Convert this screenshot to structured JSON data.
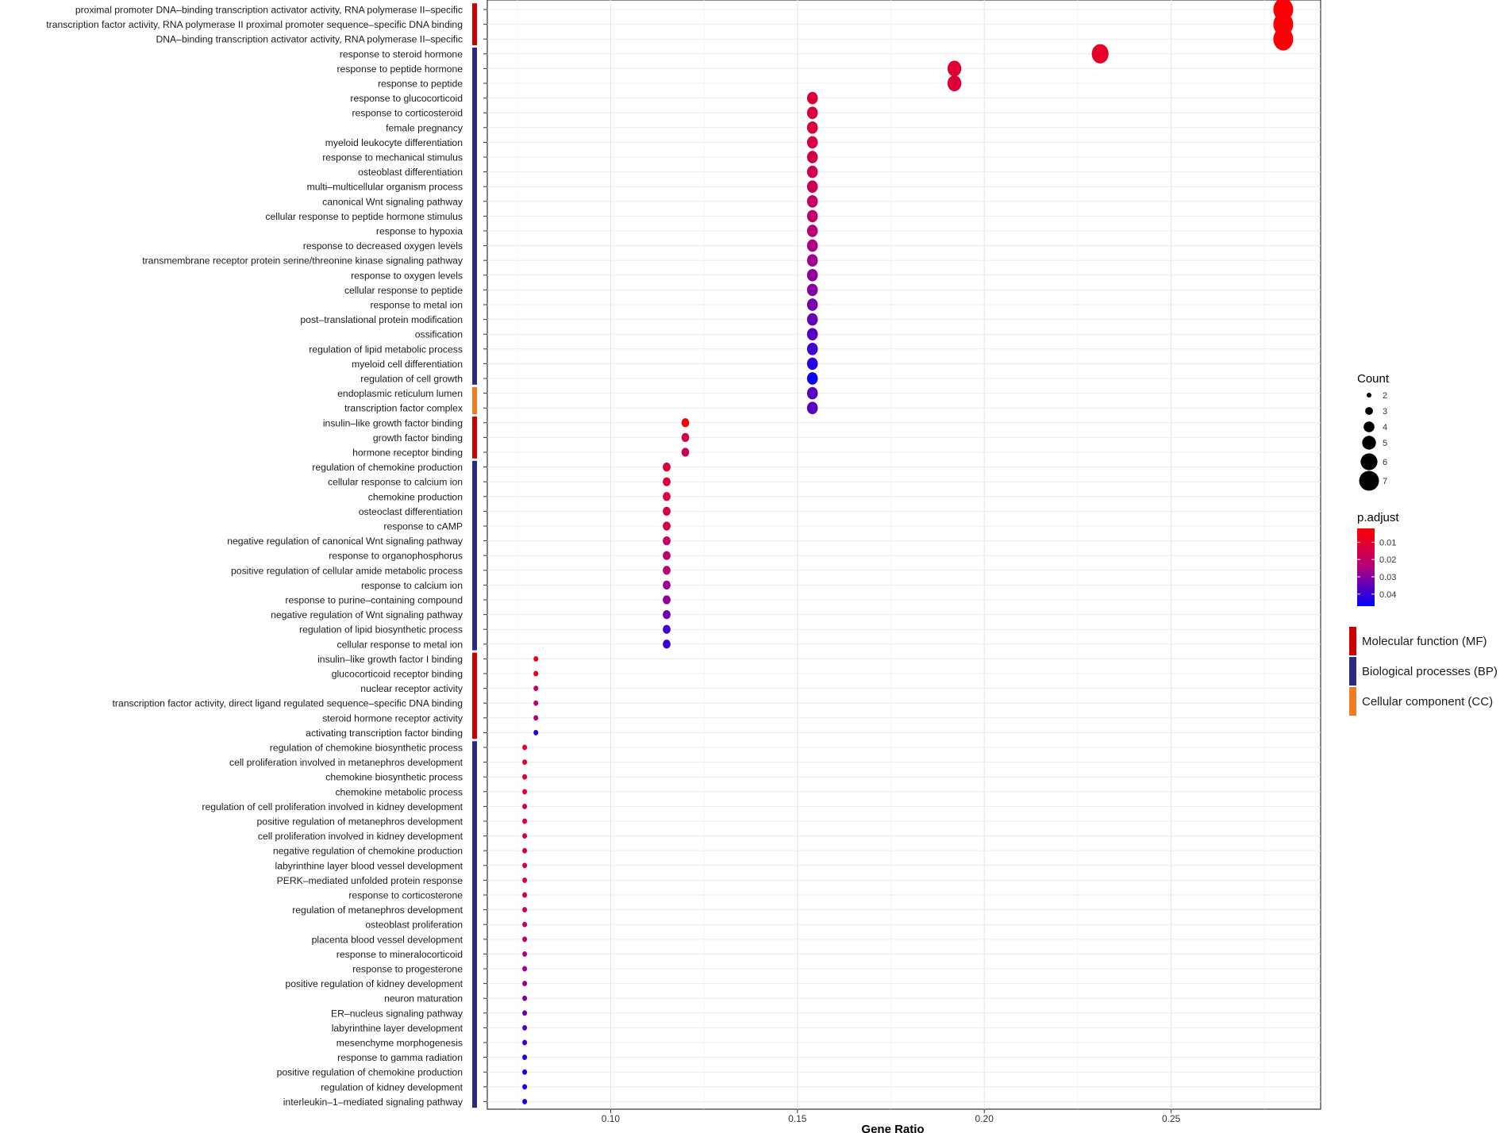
{
  "chart_data": {
    "type": "scatter",
    "xlabel": "Gene Ratio",
    "ylabel": "",
    "xlim": [
      0.067,
      0.29
    ],
    "x_ticks": [
      "0.10",
      "0.15",
      "0.20",
      "0.25"
    ],
    "x_tick_values": [
      0.1,
      0.15,
      0.2,
      0.25
    ],
    "grid": true,
    "legend_position": "right",
    "size_legend": {
      "title": "Count",
      "values": [
        2,
        3,
        4,
        5,
        6,
        7
      ]
    },
    "color_legend": {
      "title": "p.adjust",
      "ticks": [
        "0.01",
        "0.02",
        "0.03",
        "0.04"
      ],
      "tick_values": [
        0.01,
        0.02,
        0.03,
        0.04
      ],
      "range": [
        0.002,
        0.047
      ],
      "low_color": "#ff0000",
      "high_color": "#0000ff"
    },
    "category_legend": [
      {
        "label": "Molecular function (MF)",
        "code": "MF",
        "color": "#cc0000"
      },
      {
        "label": "Biological processes (BP)",
        "code": "BP",
        "color": "#2b2a7e"
      },
      {
        "label": "Cellular component (CC)",
        "code": "CC",
        "color": "#f07d24"
      }
    ],
    "terms": [
      {
        "label": "proximal promoter DNA–binding transcription activator activity, RNA polymerase II–specific",
        "cat": "MF",
        "x": 0.28,
        "count": 7,
        "p": 0.003
      },
      {
        "label": "transcription factor activity, RNA polymerase II proximal promoter sequence–specific DNA binding",
        "cat": "MF",
        "x": 0.28,
        "count": 7,
        "p": 0.003
      },
      {
        "label": "DNA–binding transcription activator activity, RNA polymerase II–specific",
        "cat": "MF",
        "x": 0.28,
        "count": 7,
        "p": 0.003
      },
      {
        "label": "response to steroid hormone",
        "cat": "BP",
        "x": 0.231,
        "count": 6,
        "p": 0.009
      },
      {
        "label": "response to peptide hormone",
        "cat": "BP",
        "x": 0.192,
        "count": 5,
        "p": 0.011
      },
      {
        "label": "response to peptide",
        "cat": "BP",
        "x": 0.192,
        "count": 5,
        "p": 0.012
      },
      {
        "label": "response to glucocorticoid",
        "cat": "BP",
        "x": 0.154,
        "count": 4,
        "p": 0.012
      },
      {
        "label": "response to corticosteroid",
        "cat": "BP",
        "x": 0.154,
        "count": 4,
        "p": 0.013
      },
      {
        "label": "female pregnancy",
        "cat": "BP",
        "x": 0.154,
        "count": 4,
        "p": 0.013
      },
      {
        "label": "myeloid leukocyte differentiation",
        "cat": "BP",
        "x": 0.154,
        "count": 4,
        "p": 0.014
      },
      {
        "label": "response to mechanical stimulus",
        "cat": "BP",
        "x": 0.154,
        "count": 4,
        "p": 0.015
      },
      {
        "label": "osteoblast differentiation",
        "cat": "BP",
        "x": 0.154,
        "count": 4,
        "p": 0.016
      },
      {
        "label": "multi–multicellular organism process",
        "cat": "BP",
        "x": 0.154,
        "count": 4,
        "p": 0.017
      },
      {
        "label": "canonical Wnt signaling pathway",
        "cat": "BP",
        "x": 0.154,
        "count": 4,
        "p": 0.019
      },
      {
        "label": "cellular response to peptide hormone stimulus",
        "cat": "BP",
        "x": 0.154,
        "count": 4,
        "p": 0.021
      },
      {
        "label": "response to hypoxia",
        "cat": "BP",
        "x": 0.154,
        "count": 4,
        "p": 0.023
      },
      {
        "label": "response to decreased oxygen levels",
        "cat": "BP",
        "x": 0.154,
        "count": 4,
        "p": 0.025
      },
      {
        "label": "transmembrane receptor protein serine/threonine kinase signaling pathway",
        "cat": "BP",
        "x": 0.154,
        "count": 4,
        "p": 0.027
      },
      {
        "label": "response to oxygen levels",
        "cat": "BP",
        "x": 0.154,
        "count": 4,
        "p": 0.029
      },
      {
        "label": "cellular response to peptide",
        "cat": "BP",
        "x": 0.154,
        "count": 4,
        "p": 0.03
      },
      {
        "label": "response to metal ion",
        "cat": "BP",
        "x": 0.154,
        "count": 4,
        "p": 0.032
      },
      {
        "label": "post–translational protein modification",
        "cat": "BP",
        "x": 0.154,
        "count": 4,
        "p": 0.034
      },
      {
        "label": "ossification",
        "cat": "BP",
        "x": 0.154,
        "count": 4,
        "p": 0.036
      },
      {
        "label": "regulation of lipid metabolic process",
        "cat": "BP",
        "x": 0.154,
        "count": 4,
        "p": 0.039
      },
      {
        "label": "myeloid cell differentiation",
        "cat": "BP",
        "x": 0.154,
        "count": 4,
        "p": 0.042
      },
      {
        "label": "regulation of cell growth",
        "cat": "BP",
        "x": 0.154,
        "count": 4,
        "p": 0.046
      },
      {
        "label": "endoplasmic reticulum lumen",
        "cat": "CC",
        "x": 0.154,
        "count": 4,
        "p": 0.036
      },
      {
        "label": "transcription factor complex",
        "cat": "CC",
        "x": 0.154,
        "count": 4,
        "p": 0.036
      },
      {
        "label": "insulin–like growth factor binding",
        "cat": "MF",
        "x": 0.12,
        "count": 3,
        "p": 0.004
      },
      {
        "label": "growth factor binding",
        "cat": "MF",
        "x": 0.12,
        "count": 3,
        "p": 0.016
      },
      {
        "label": "hormone receptor binding",
        "cat": "MF",
        "x": 0.12,
        "count": 3,
        "p": 0.018
      },
      {
        "label": "regulation of chemokine production",
        "cat": "BP",
        "x": 0.115,
        "count": 3,
        "p": 0.012
      },
      {
        "label": "cellular response to calcium ion",
        "cat": "BP",
        "x": 0.115,
        "count": 3,
        "p": 0.013
      },
      {
        "label": "chemokine production",
        "cat": "BP",
        "x": 0.115,
        "count": 3,
        "p": 0.013
      },
      {
        "label": "osteoclast differentiation",
        "cat": "BP",
        "x": 0.115,
        "count": 3,
        "p": 0.014
      },
      {
        "label": "response to cAMP",
        "cat": "BP",
        "x": 0.115,
        "count": 3,
        "p": 0.015
      },
      {
        "label": "negative regulation of canonical Wnt signaling pathway",
        "cat": "BP",
        "x": 0.115,
        "count": 3,
        "p": 0.02
      },
      {
        "label": "response to organophosphorus",
        "cat": "BP",
        "x": 0.115,
        "count": 3,
        "p": 0.021
      },
      {
        "label": "positive regulation of cellular amide metabolic process",
        "cat": "BP",
        "x": 0.115,
        "count": 3,
        "p": 0.022
      },
      {
        "label": "response to calcium ion",
        "cat": "BP",
        "x": 0.115,
        "count": 3,
        "p": 0.027
      },
      {
        "label": "response to purine–containing compound",
        "cat": "BP",
        "x": 0.115,
        "count": 3,
        "p": 0.029
      },
      {
        "label": "negative regulation of Wnt signaling pathway",
        "cat": "BP",
        "x": 0.115,
        "count": 3,
        "p": 0.033
      },
      {
        "label": "regulation of lipid biosynthetic process",
        "cat": "BP",
        "x": 0.115,
        "count": 3,
        "p": 0.038
      },
      {
        "label": "cellular response to metal ion",
        "cat": "BP",
        "x": 0.115,
        "count": 3,
        "p": 0.04
      },
      {
        "label": "insulin–like growth factor I binding",
        "cat": "MF",
        "x": 0.08,
        "count": 2,
        "p": 0.006
      },
      {
        "label": "glucocorticoid receptor binding",
        "cat": "MF",
        "x": 0.08,
        "count": 2,
        "p": 0.007
      },
      {
        "label": "nuclear receptor activity",
        "cat": "MF",
        "x": 0.08,
        "count": 2,
        "p": 0.02
      },
      {
        "label": "transcription factor activity, direct ligand regulated sequence–specific DNA binding",
        "cat": "MF",
        "x": 0.08,
        "count": 2,
        "p": 0.021
      },
      {
        "label": "steroid hormone receptor activity",
        "cat": "MF",
        "x": 0.08,
        "count": 2,
        "p": 0.023
      },
      {
        "label": "activating transcription factor binding",
        "cat": "MF",
        "x": 0.08,
        "count": 2,
        "p": 0.043
      },
      {
        "label": "regulation of chemokine biosynthetic process",
        "cat": "BP",
        "x": 0.077,
        "count": 2,
        "p": 0.01
      },
      {
        "label": "cell proliferation involved in metanephros development",
        "cat": "BP",
        "x": 0.077,
        "count": 2,
        "p": 0.01
      },
      {
        "label": "chemokine biosynthetic process",
        "cat": "BP",
        "x": 0.077,
        "count": 2,
        "p": 0.011
      },
      {
        "label": "chemokine metabolic process",
        "cat": "BP",
        "x": 0.077,
        "count": 2,
        "p": 0.012
      },
      {
        "label": "regulation of cell proliferation involved in kidney development",
        "cat": "BP",
        "x": 0.077,
        "count": 2,
        "p": 0.013
      },
      {
        "label": "positive regulation of metanephros development",
        "cat": "BP",
        "x": 0.077,
        "count": 2,
        "p": 0.013
      },
      {
        "label": "cell proliferation involved in kidney development",
        "cat": "BP",
        "x": 0.077,
        "count": 2,
        "p": 0.014
      },
      {
        "label": "negative regulation of chemokine production",
        "cat": "BP",
        "x": 0.077,
        "count": 2,
        "p": 0.014
      },
      {
        "label": "labyrinthine layer blood vessel development",
        "cat": "BP",
        "x": 0.077,
        "count": 2,
        "p": 0.015
      },
      {
        "label": "PERK–mediated unfolded protein response",
        "cat": "BP",
        "x": 0.077,
        "count": 2,
        "p": 0.015
      },
      {
        "label": "response to corticosterone",
        "cat": "BP",
        "x": 0.077,
        "count": 2,
        "p": 0.016
      },
      {
        "label": "regulation of metanephros development",
        "cat": "BP",
        "x": 0.077,
        "count": 2,
        "p": 0.019
      },
      {
        "label": "osteoblast proliferation",
        "cat": "BP",
        "x": 0.077,
        "count": 2,
        "p": 0.021
      },
      {
        "label": "placenta blood vessel development",
        "cat": "BP",
        "x": 0.077,
        "count": 2,
        "p": 0.022
      },
      {
        "label": "response to mineralocorticoid",
        "cat": "BP",
        "x": 0.077,
        "count": 2,
        "p": 0.024
      },
      {
        "label": "response to progesterone",
        "cat": "BP",
        "x": 0.077,
        "count": 2,
        "p": 0.026
      },
      {
        "label": "positive regulation of kidney development",
        "cat": "BP",
        "x": 0.077,
        "count": 2,
        "p": 0.028
      },
      {
        "label": "neuron maturation",
        "cat": "BP",
        "x": 0.077,
        "count": 2,
        "p": 0.031
      },
      {
        "label": "ER–nucleus signaling pathway",
        "cat": "BP",
        "x": 0.077,
        "count": 2,
        "p": 0.034
      },
      {
        "label": "labyrinthine layer development",
        "cat": "BP",
        "x": 0.077,
        "count": 2,
        "p": 0.037
      },
      {
        "label": "mesenchyme morphogenesis",
        "cat": "BP",
        "x": 0.077,
        "count": 2,
        "p": 0.039
      },
      {
        "label": "response to gamma radiation",
        "cat": "BP",
        "x": 0.077,
        "count": 2,
        "p": 0.043
      },
      {
        "label": "positive regulation of chemokine production",
        "cat": "BP",
        "x": 0.077,
        "count": 2,
        "p": 0.044
      },
      {
        "label": "regulation of kidney development",
        "cat": "BP",
        "x": 0.077,
        "count": 2,
        "p": 0.044
      },
      {
        "label": "interleukin–1–mediated signaling pathway",
        "cat": "BP",
        "x": 0.077,
        "count": 2,
        "p": 0.044
      }
    ]
  }
}
